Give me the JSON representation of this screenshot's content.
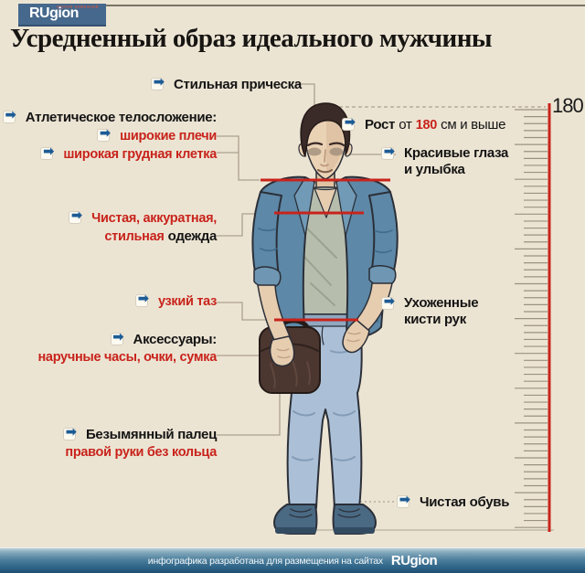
{
  "header": {
    "logo": "RUgion",
    "logo_sub": "группа компаний",
    "title": "Усредненный образ идеального мужчины"
  },
  "icons": {
    "arrow": "➡"
  },
  "labels": {
    "hairstyle": "Стильная прическа",
    "athletic_title": "Атлетическое телосложение:",
    "athletic_item1": "широкие плечи",
    "athletic_item2": "широкая грудная клетка",
    "clothes_line1": "Чистая, аккуратная,",
    "clothes_line2_red": "стильная",
    "clothes_line2_black": "одежда",
    "pelvis": "узкий таз",
    "accessories_title": "Аксессуары:",
    "accessories_detail": "наручные часы, очки, сумка",
    "finger_title": "Безымянный палец",
    "finger_detail": "правой руки без кольца",
    "height_bold": "Рост",
    "height_pre": "от",
    "height_value": "180",
    "height_post": "см и выше",
    "eyes_line1": "Красивые глаза",
    "eyes_line2": "и улыбка",
    "hands_line1": "Ухоженные",
    "hands_line2": "кисти рук",
    "shoes": "Чистая обувь"
  },
  "ruler": {
    "top_label": "180"
  },
  "footer": {
    "text": "инфографика разработана для размещения на сайтах",
    "logo": "RUgion"
  },
  "colors": {
    "background": "#ece4d3",
    "accent_red": "#c8231b",
    "arrow_blue": "#1d5c95",
    "logo_blue": "#46688c"
  }
}
